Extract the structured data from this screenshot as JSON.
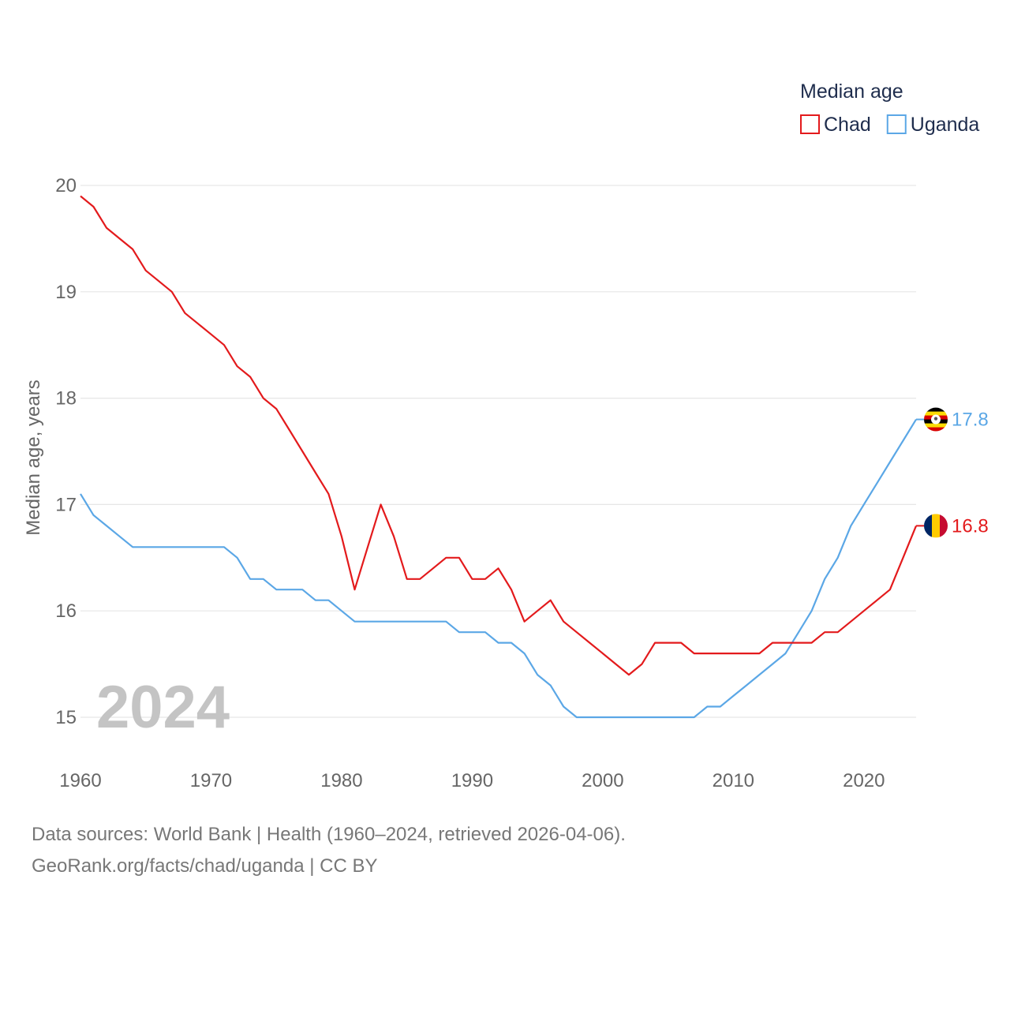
{
  "chart_data": {
    "type": "line",
    "legend_title": "Median age",
    "ylabel": "Median age, years",
    "year_label": "2024",
    "x": [
      1960,
      1961,
      1962,
      1963,
      1964,
      1965,
      1966,
      1967,
      1968,
      1969,
      1970,
      1971,
      1972,
      1973,
      1974,
      1975,
      1976,
      1977,
      1978,
      1979,
      1980,
      1981,
      1982,
      1983,
      1984,
      1985,
      1986,
      1987,
      1988,
      1989,
      1990,
      1991,
      1992,
      1993,
      1994,
      1995,
      1996,
      1997,
      1998,
      1999,
      2000,
      2001,
      2002,
      2003,
      2004,
      2005,
      2006,
      2007,
      2008,
      2009,
      2010,
      2011,
      2012,
      2013,
      2014,
      2015,
      2016,
      2017,
      2018,
      2019,
      2020,
      2021,
      2022,
      2023,
      2024
    ],
    "xlim": [
      1960,
      2024
    ],
    "ylim": [
      15,
      20
    ],
    "xticks": [
      "1960",
      "1970",
      "1980",
      "1990",
      "2000",
      "2010",
      "2020"
    ],
    "yticks": [
      "15",
      "16",
      "17",
      "18",
      "19",
      "20"
    ],
    "grid": true,
    "legend_position": "top-right",
    "series": [
      {
        "name": "Chad",
        "color": "#e31a1c",
        "flag": "chad-flag",
        "end_label": "16.8",
        "values": [
          19.9,
          19.8,
          19.6,
          19.5,
          19.4,
          19.2,
          19.1,
          19.0,
          18.8,
          18.7,
          18.6,
          18.5,
          18.3,
          18.2,
          18.0,
          17.9,
          17.7,
          17.5,
          17.3,
          17.1,
          16.7,
          16.2,
          16.6,
          17.0,
          16.7,
          16.3,
          16.3,
          16.4,
          16.5,
          16.5,
          16.3,
          16.3,
          16.4,
          16.2,
          15.9,
          16.0,
          16.1,
          15.9,
          15.8,
          15.7,
          15.6,
          15.5,
          15.4,
          15.5,
          15.7,
          15.7,
          15.7,
          15.6,
          15.6,
          15.6,
          15.6,
          15.6,
          15.6,
          15.7,
          15.7,
          15.7,
          15.7,
          15.8,
          15.8,
          15.9,
          16.0,
          16.1,
          16.2,
          16.5,
          16.8
        ]
      },
      {
        "name": "Uganda",
        "color": "#5ba7e6",
        "flag": "uganda-flag",
        "end_label": "17.8",
        "values": [
          17.1,
          16.9,
          16.8,
          16.7,
          16.6,
          16.6,
          16.6,
          16.6,
          16.6,
          16.6,
          16.6,
          16.6,
          16.5,
          16.3,
          16.3,
          16.2,
          16.2,
          16.2,
          16.1,
          16.1,
          16.0,
          15.9,
          15.9,
          15.9,
          15.9,
          15.9,
          15.9,
          15.9,
          15.9,
          15.8,
          15.8,
          15.8,
          15.7,
          15.7,
          15.6,
          15.4,
          15.3,
          15.1,
          15.0,
          15.0,
          15.0,
          15.0,
          15.0,
          15.0,
          15.0,
          15.0,
          15.0,
          15.0,
          15.1,
          15.1,
          15.2,
          15.3,
          15.4,
          15.5,
          15.6,
          15.8,
          16.0,
          16.3,
          16.5,
          16.8,
          17.0,
          17.2,
          17.4,
          17.6,
          17.8
        ]
      }
    ]
  },
  "footer": {
    "line1": "Data sources: World Bank | Health (1960–2024, retrieved 2026-04-06).",
    "line2": "GeoRank.org/facts/chad/uganda | CC BY"
  }
}
